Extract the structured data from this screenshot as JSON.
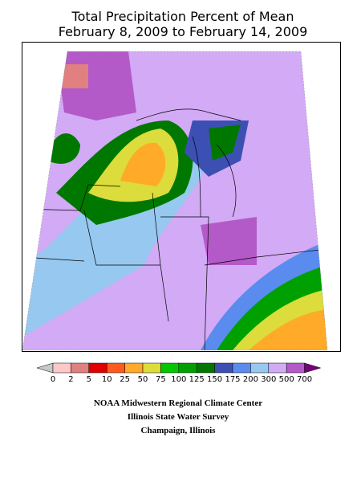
{
  "header": {
    "title": [
      "Total Precipitation Percent of Mean",
      "February 8, 2009 to February 14, 2009"
    ]
  },
  "legend": {
    "labels": [
      "0",
      "2",
      "5",
      "10",
      "25",
      "50",
      "75",
      "100",
      "125",
      "150",
      "175",
      "200",
      "300",
      "500",
      "700"
    ],
    "under_color": "#c8c8c8",
    "over_color": "#780078",
    "colors": [
      "#ffc8c8",
      "#e08080",
      "#e00000",
      "#ff5a1e",
      "#ffaa28",
      "#dcdc3c",
      "#00c800",
      "#00a000",
      "#007800",
      "#3c50b4",
      "#5a8cf0",
      "#96c8f0",
      "#d2aaf5",
      "#b45ac8"
    ]
  },
  "footer": {
    "lines": [
      "NOAA Midwestern Regional Climate Center",
      "Illinois State Water Survey",
      "Champaign, Illinois"
    ]
  }
}
